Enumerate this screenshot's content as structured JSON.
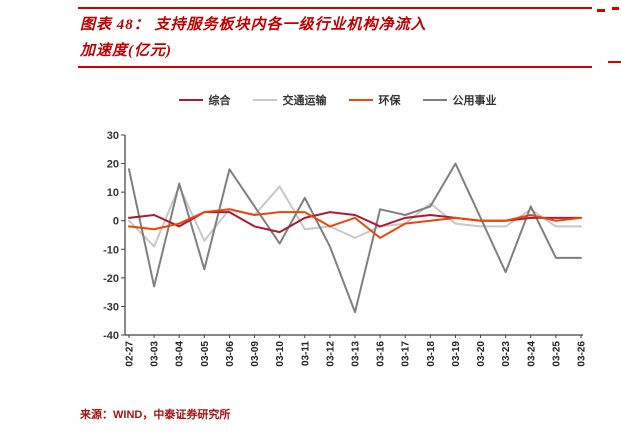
{
  "title": {
    "line1": "图表 48：  支持服务板块内各一级行业机构净流入",
    "line2": "加速度(亿元)"
  },
  "source": "来源：WIND，中泰证券研究所",
  "colors": {
    "accent_red": "#c00000",
    "rule_red": "#d40000",
    "axis": "#404040"
  },
  "chart_data": {
    "type": "line",
    "title": "支持服务板块内各一级行业机构净流入加速度(亿元)",
    "x": [
      "02-27",
      "03-03",
      "03-04",
      "03-05",
      "03-06",
      "03-09",
      "03-10",
      "03-11",
      "03-12",
      "03-13",
      "03-16",
      "03-17",
      "03-18",
      "03-19",
      "03-20",
      "03-23",
      "03-24",
      "03-25",
      "03-26"
    ],
    "series": [
      {
        "name": "综合",
        "color": "#ae1932",
        "values": [
          1,
          2,
          -2,
          3,
          3,
          -2,
          -4,
          1,
          3,
          2,
          -2,
          1,
          2,
          1,
          0,
          0,
          1,
          1,
          1
        ]
      },
      {
        "name": "交通运输",
        "color": "#c8c8c8",
        "values": [
          0,
          -9,
          12,
          -7,
          4,
          2,
          12,
          -3,
          -2,
          -6,
          -2,
          -1,
          6,
          -1,
          -2,
          -2,
          4,
          -2,
          -2
        ]
      },
      {
        "name": "环保",
        "color": "#e8470b",
        "values": [
          -2,
          -3,
          -1,
          3,
          4,
          2,
          3,
          3,
          -2,
          1,
          -6,
          -1,
          0,
          1,
          0,
          0,
          2,
          0,
          1
        ]
      },
      {
        "name": "公用事业",
        "color": "#7f7f7f",
        "values": [
          18,
          -23,
          13,
          -17,
          18,
          5,
          -8,
          8,
          -9,
          -32,
          4,
          2,
          5,
          20,
          1,
          -18,
          5,
          -13,
          -13
        ]
      }
    ],
    "ylim": [
      -40,
      30
    ],
    "yticks": [
      30,
      20,
      10,
      0,
      -10,
      -20,
      -30,
      -40
    ],
    "xlabel": "",
    "ylabel": "",
    "grid": false,
    "legend_position": "top"
  }
}
